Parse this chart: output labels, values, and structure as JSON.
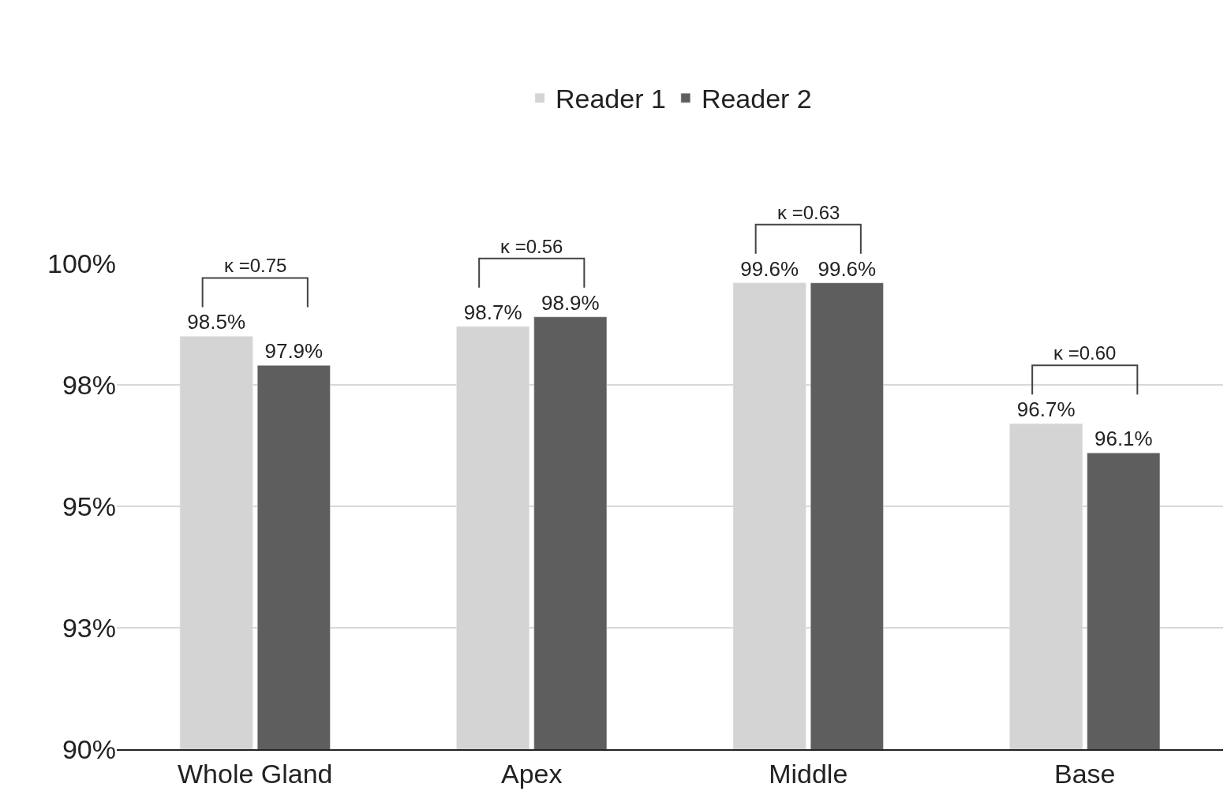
{
  "chart_data": {
    "type": "bar",
    "categories": [
      "Whole Gland",
      "Apex",
      "Middle",
      "Base"
    ],
    "series": [
      {
        "name": "Reader 1",
        "color": "#d4d4d4",
        "values": [
          98.5,
          98.7,
          99.6,
          96.7
        ],
        "value_labels": [
          "98.5%",
          "98.7%",
          "99.6%",
          "96.7%"
        ]
      },
      {
        "name": "Reader 2",
        "color": "#5e5e5e",
        "values": [
          97.9,
          98.9,
          99.6,
          96.1
        ],
        "value_labels": [
          "97.9%",
          "98.9%",
          "99.6%",
          "96.1%"
        ]
      }
    ],
    "ylim": [
      90,
      100
    ],
    "yticks": [
      {
        "value": 90,
        "label": "90%"
      },
      {
        "value": 92.5,
        "label": "93%"
      },
      {
        "value": 95,
        "label": "95%"
      },
      {
        "value": 97.5,
        "label": "98%"
      },
      {
        "value": 100,
        "label": "100%"
      }
    ],
    "grid": "y",
    "legend": "top",
    "annotations": [
      "κ =0.75",
      "κ =0.56",
      "κ =0.63",
      "κ =0.60"
    ]
  }
}
